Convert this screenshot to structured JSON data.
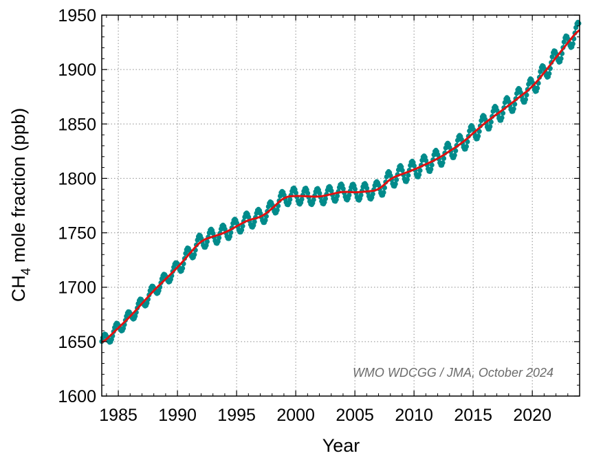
{
  "chart_data": {
    "type": "line",
    "xlabel": "Year",
    "ylabel_main": "CH",
    "ylabel_sub": "4",
    "ylabel_rest": " mole fraction (ppb)",
    "annotation": "WMO WDCGG / JMA, October 2024",
    "xlim": [
      1983.6,
      2024.0
    ],
    "ylim": [
      1600,
      1950
    ],
    "xticks": [
      1985,
      1990,
      1995,
      2000,
      2005,
      2010,
      2015,
      2020
    ],
    "yticks": [
      1600,
      1650,
      1700,
      1750,
      1800,
      1850,
      1900,
      1950
    ],
    "grid": true,
    "colors": {
      "monthly": "#008b8b",
      "trend": "#e01010"
    },
    "trend_anchors": {
      "x": [
        1983.6,
        1986,
        1988,
        1990,
        1992,
        1994,
        1996,
        1997,
        1998,
        1999,
        2000,
        2002,
        2004,
        2005,
        2007,
        2008,
        2010,
        2012,
        2014,
        2016,
        2018,
        2020,
        2021,
        2022,
        2024
      ],
      "y": [
        1648,
        1673,
        1697,
        1718,
        1743,
        1750,
        1762,
        1764,
        1772,
        1783,
        1784,
        1783,
        1788,
        1787,
        1789,
        1800,
        1808,
        1818,
        1832,
        1851,
        1867,
        1884,
        1897,
        1911,
        1938
      ]
    }
  }
}
